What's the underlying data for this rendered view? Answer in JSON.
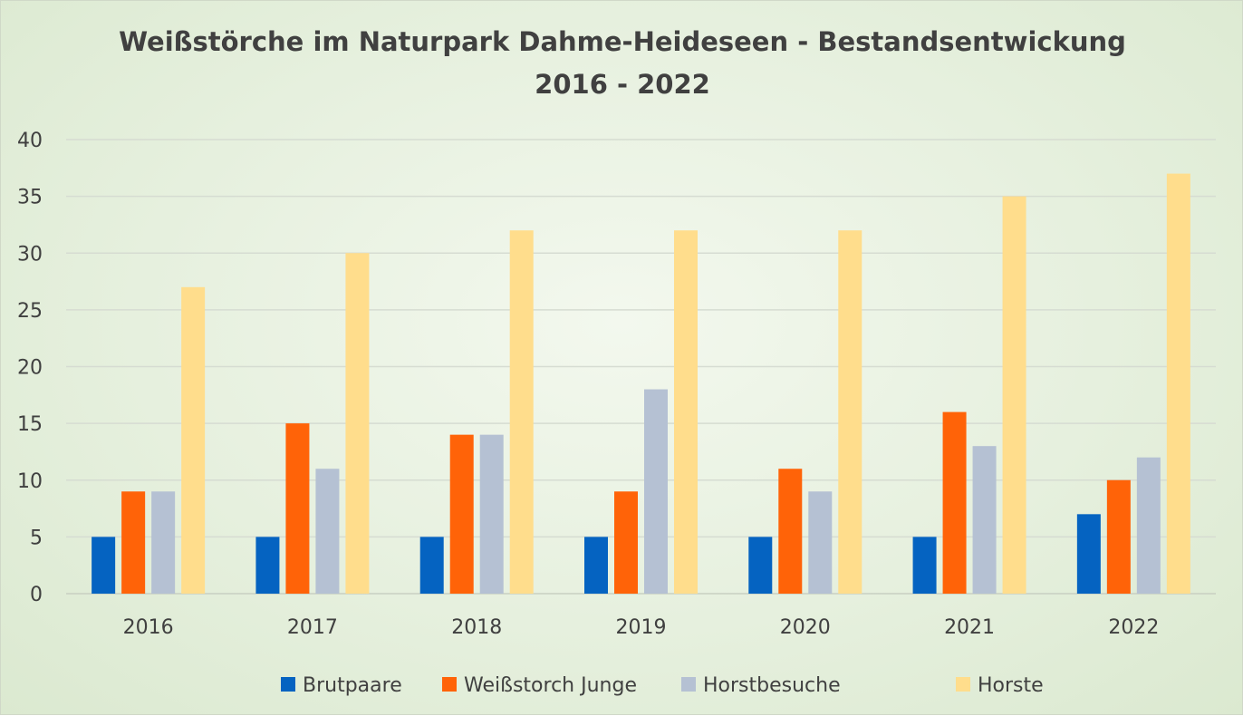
{
  "chart_data": {
    "type": "bar",
    "title": "Weißstörche im Naturpark Dahme-Heideseen - Bestandsentwickung",
    "subtitle": "2016 - 2022",
    "xlabel": "",
    "ylabel": "",
    "ylim": [
      0,
      40
    ],
    "yticks": [
      "0",
      "5",
      "10",
      "15",
      "20",
      "25",
      "30",
      "35",
      "40"
    ],
    "grid": true,
    "legend_position": "bottom",
    "categories": [
      "2016",
      "2017",
      "2018",
      "2019",
      "2020",
      "2021",
      "2022"
    ],
    "series": [
      {
        "name": "Brutpaare",
        "color": "#0563c1",
        "values": [
          5,
          5,
          5,
          5,
          5,
          5,
          7
        ]
      },
      {
        "name": "Weißstorch Junge",
        "color": "#ff6308",
        "values": [
          9,
          15,
          14,
          9,
          11,
          16,
          10
        ]
      },
      {
        "name": "Horstbesuche",
        "color": "#b5c1d3",
        "values": [
          9,
          11,
          14,
          18,
          9,
          13,
          12
        ]
      },
      {
        "name": "Horste",
        "color": "#ffdd8c",
        "values": [
          27,
          30,
          32,
          32,
          32,
          35,
          37
        ]
      }
    ]
  }
}
